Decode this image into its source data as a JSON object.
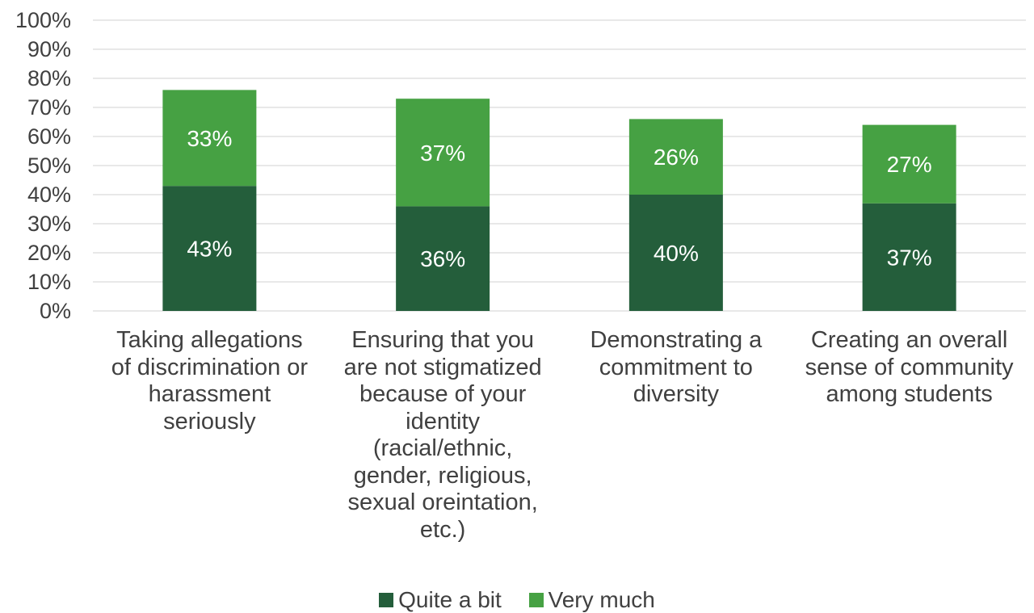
{
  "chart_data": {
    "type": "bar",
    "stacked": true,
    "categories": [
      "Taking allegations of discrimination or harassment seriously",
      "Ensuring that you are not stigmatized because of your identity (racial/ethnic, gender, religious, sexual oreintation, etc.)",
      "Demonstrating a commitment to diversity",
      "Creating an overall sense of community among students"
    ],
    "category_lines": [
      [
        "Taking allegations",
        "of discrimination or",
        "harassment",
        "seriously"
      ],
      [
        "Ensuring that you",
        "are not stigmatized",
        "because of your",
        "identity",
        "(racial/ethnic,",
        "gender, religious,",
        "sexual oreintation,",
        "etc.)"
      ],
      [
        "Demonstrating a",
        "commitment to",
        "diversity"
      ],
      [
        "Creating an overall",
        "sense of community",
        "among students"
      ]
    ],
    "series": [
      {
        "name": "Quite a bit",
        "values": [
          43,
          36,
          40,
          37
        ],
        "labels": [
          "43%",
          "36%",
          "40%",
          "37%"
        ],
        "color": "#245e3b"
      },
      {
        "name": "Very much",
        "values": [
          33,
          37,
          26,
          27
        ],
        "labels": [
          "33%",
          "37%",
          "26%",
          "27%"
        ],
        "color": "#46a143"
      }
    ],
    "y_ticks": [
      "0%",
      "10%",
      "20%",
      "30%",
      "40%",
      "50%",
      "60%",
      "70%",
      "80%",
      "90%",
      "100%"
    ],
    "ylim": [
      0,
      100
    ],
    "grid": true,
    "gridline_color": "#d9d9d9",
    "legend_position": "bottom",
    "title": "",
    "xlabel": "",
    "ylabel": ""
  }
}
